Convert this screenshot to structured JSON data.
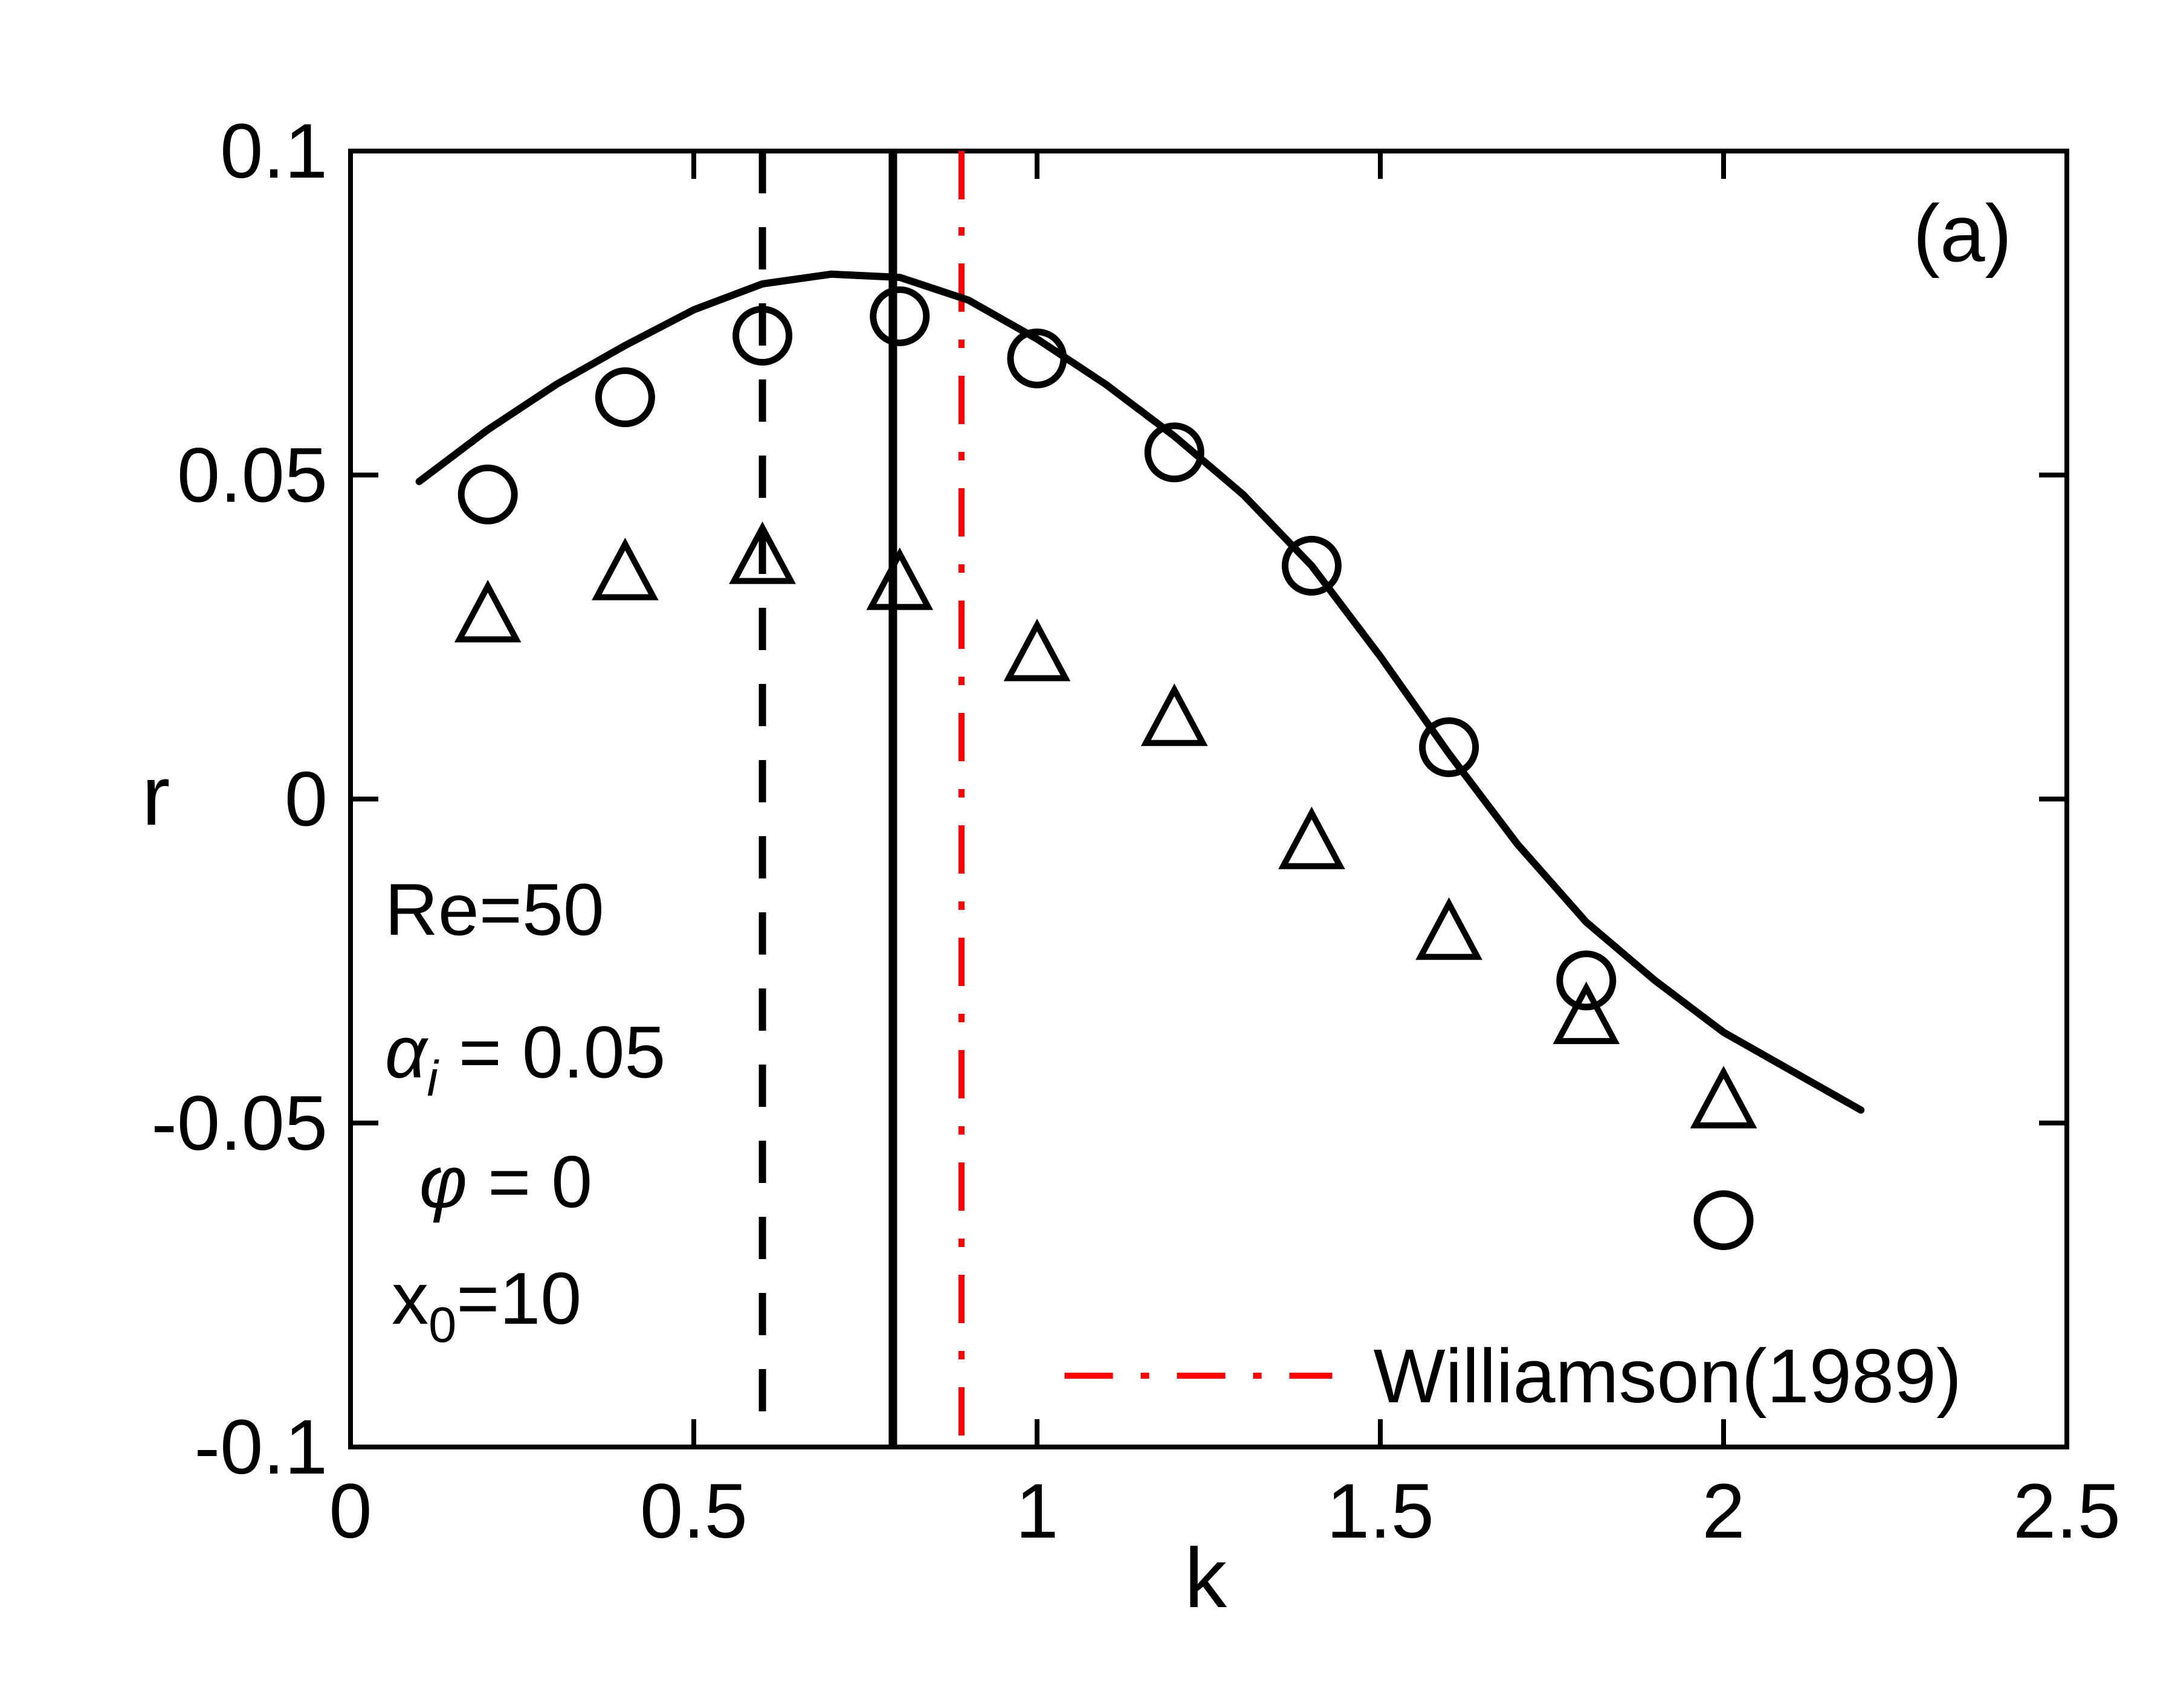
{
  "chart_data": {
    "type": "line",
    "title": "",
    "xlabel": "k",
    "ylabel": "r",
    "xlim": [
      0,
      2.5
    ],
    "ylim": [
      -0.1,
      0.1
    ],
    "xticks": [
      0,
      0.5,
      1,
      1.5,
      2,
      2.5
    ],
    "xtick_labels": [
      "0",
      "0.5",
      "1",
      "1.5",
      "2",
      "2.5"
    ],
    "yticks": [
      -0.1,
      -0.05,
      0,
      0.05,
      0.1
    ],
    "ytick_labels": [
      "-0.1",
      "-0.05",
      "0",
      "0.05",
      "0.1"
    ],
    "grid": false,
    "axis_color": "#000000",
    "accent_red": "#ff0000",
    "series": [
      {
        "name": "theory-curve",
        "type": "line",
        "color": "#000000",
        "x": [
          0.1,
          0.2,
          0.3,
          0.4,
          0.5,
          0.6,
          0.7,
          0.8,
          0.9,
          1.0,
          1.1,
          1.2,
          1.3,
          1.4,
          1.5,
          1.6,
          1.7,
          1.8,
          1.9,
          2.0,
          2.1,
          2.2
        ],
        "y": [
          0.049,
          0.057,
          0.064,
          0.07,
          0.0755,
          0.0795,
          0.081,
          0.0805,
          0.077,
          0.071,
          0.064,
          0.056,
          0.047,
          0.036,
          0.022,
          0.007,
          -0.007,
          -0.019,
          -0.028,
          -0.036,
          -0.042,
          -0.048
        ]
      },
      {
        "name": "circle-markers",
        "type": "scatter",
        "marker": "circle",
        "color": "#000000",
        "x": [
          0.2,
          0.4,
          0.6,
          0.8,
          1.0,
          1.2,
          1.4,
          1.6,
          1.8,
          2.0
        ],
        "y": [
          0.047,
          0.062,
          0.0715,
          0.0745,
          0.068,
          0.0535,
          0.036,
          0.008,
          -0.028,
          -0.065
        ]
      },
      {
        "name": "triangle-markers",
        "type": "scatter",
        "marker": "triangle",
        "color": "#000000",
        "x": [
          0.2,
          0.4,
          0.6,
          0.8,
          1.0,
          1.2,
          1.4,
          1.6,
          1.8,
          2.0
        ],
        "y": [
          0.028,
          0.0345,
          0.037,
          0.033,
          0.022,
          0.012,
          -0.007,
          -0.021,
          -0.034,
          -0.047
        ]
      }
    ],
    "vlines": [
      {
        "name": "dashed-black",
        "x": 0.6,
        "style": "dashed",
        "color": "#000000",
        "width": 12
      },
      {
        "name": "solid-black",
        "x": 0.79,
        "style": "solid",
        "color": "#000000",
        "width": 14
      },
      {
        "name": "dashdot-red",
        "x": 0.89,
        "style": "dashdot",
        "color": "#ff0000",
        "width": 10
      }
    ],
    "legend": {
      "label": "Williamson(1989)",
      "line_style": "dashdot",
      "color": "#ff0000",
      "x1": 1.04,
      "x2": 1.43,
      "text_x": 1.49,
      "y": -0.089,
      "position": "bottom-right"
    },
    "annotations": [
      {
        "name": "panel-label",
        "x": 2.42,
        "y": 0.083,
        "anchor": "end",
        "font": "sans",
        "parts": [
          {
            "t": "(a)"
          }
        ]
      },
      {
        "name": "re-annotation",
        "x": 0.05,
        "y": -0.021,
        "anchor": "start",
        "font": "sans",
        "parts": [
          {
            "t": "Re=50"
          }
        ]
      },
      {
        "name": "alpha-annotation",
        "x": 0.05,
        "y": -0.043,
        "anchor": "start",
        "font": "serif",
        "parts": [
          {
            "t": "α",
            "italic": true
          },
          {
            "t": "i",
            "sub": true,
            "italic": true
          },
          {
            "t": " = 0.05"
          }
        ]
      },
      {
        "name": "phi-annotation",
        "x": 0.1,
        "y": -0.063,
        "anchor": "start",
        "font": "serif",
        "parts": [
          {
            "t": "φ",
            "italic": true
          },
          {
            "t": " = 0"
          }
        ]
      },
      {
        "name": "x0-annotation",
        "x": 0.06,
        "y": -0.081,
        "anchor": "start",
        "font": "sans",
        "parts": [
          {
            "t": "x"
          },
          {
            "t": "0",
            "sub": true
          },
          {
            "t": "=10"
          }
        ]
      }
    ]
  }
}
